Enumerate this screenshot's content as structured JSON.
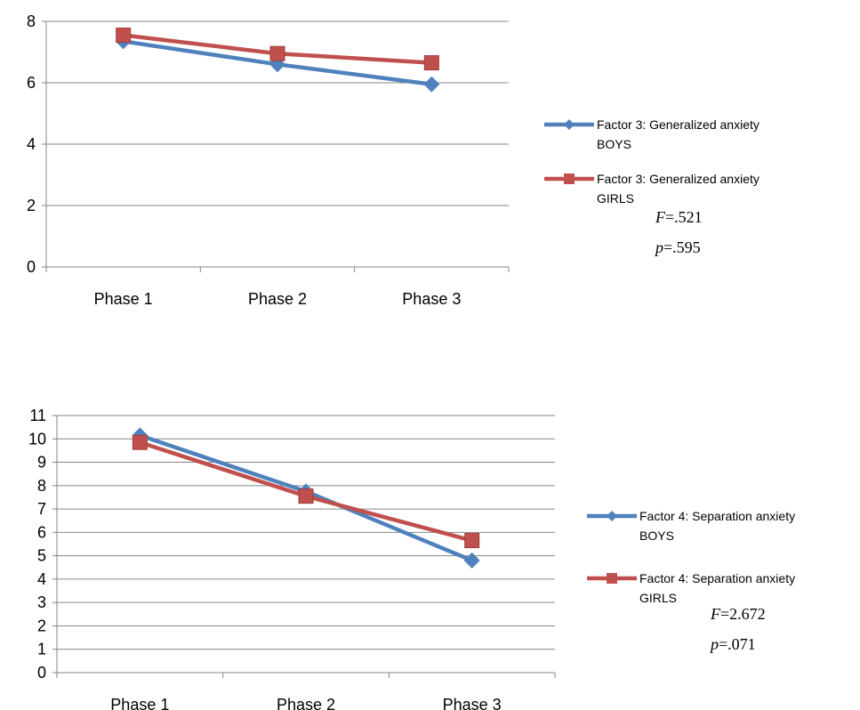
{
  "chart_data": [
    {
      "type": "line",
      "categories": [
        "Phase 1",
        "Phase 2",
        "Phase 3"
      ],
      "ylim": [
        0,
        8
      ],
      "yticks": [
        "0",
        "2",
        "4",
        "6",
        "8"
      ],
      "grid": true,
      "legend_position": "right",
      "series": [
        {
          "name": "Factor 3: Generalized anxiety BOYS",
          "legend_lines": [
            "Factor 3: Generalized anxiety",
            "BOYS"
          ],
          "color": "#4F81BD",
          "marker": "diamond",
          "values": [
            7.35,
            6.6,
            5.95
          ]
        },
        {
          "name": "Factor 3: Generalized anxiety GIRLS",
          "legend_lines": [
            "Factor 3: Generalized anxiety",
            "GIRLS"
          ],
          "color": "#C0504D",
          "marker": "square",
          "values": [
            7.55,
            6.95,
            6.65
          ]
        }
      ],
      "stats": {
        "f_label": "F",
        "f_value": "=.521",
        "p_label": "p",
        "p_value": "=.595"
      }
    },
    {
      "type": "line",
      "categories": [
        "Phase 1",
        "Phase 2",
        "Phase 3"
      ],
      "ylim": [
        0,
        11
      ],
      "yticks": [
        "0",
        "1",
        "2",
        "3",
        "4",
        "5",
        "6",
        "7",
        "8",
        "9",
        "10",
        "11"
      ],
      "grid": true,
      "legend_position": "right",
      "series": [
        {
          "name": "Factor 4: Separation anxiety BOYS",
          "legend_lines": [
            "Factor 4: Separation anxiety",
            "BOYS"
          ],
          "color": "#4F81BD",
          "marker": "diamond",
          "values": [
            10.15,
            7.75,
            4.8
          ]
        },
        {
          "name": "Factor 4: Separation anxiety GIRLS",
          "legend_lines": [
            "Factor 4: Separation anxiety",
            "GIRLS"
          ],
          "color": "#C0504D",
          "marker": "square",
          "values": [
            9.85,
            7.55,
            5.65
          ]
        }
      ],
      "stats": {
        "f_label": "F",
        "f_value": "=2.672",
        "p_label": "p",
        "p_value": "=.071"
      }
    }
  ]
}
